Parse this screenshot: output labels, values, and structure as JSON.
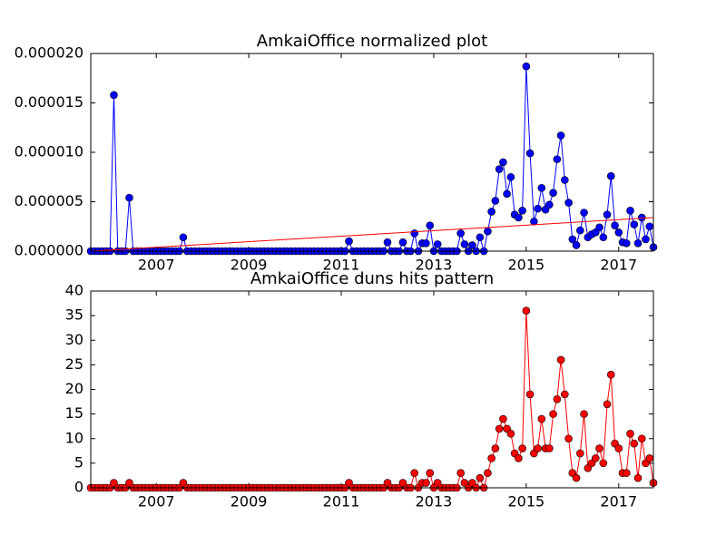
{
  "chart_data": [
    {
      "type": "line",
      "title": "AmkaiOffice normalized plot",
      "x": [
        2005.583,
        2005.667,
        2005.75,
        2005.833,
        2005.917,
        2006,
        2006.083,
        2006.167,
        2006.25,
        2006.333,
        2006.417,
        2006.5,
        2006.583,
        2006.667,
        2006.75,
        2006.833,
        2006.917,
        2007,
        2007.083,
        2007.167,
        2007.25,
        2007.333,
        2007.417,
        2007.5,
        2007.583,
        2007.667,
        2007.75,
        2007.833,
        2007.917,
        2008,
        2008.083,
        2008.167,
        2008.25,
        2008.333,
        2008.417,
        2008.5,
        2008.583,
        2008.667,
        2008.75,
        2008.833,
        2008.917,
        2009,
        2009.083,
        2009.167,
        2009.25,
        2009.333,
        2009.417,
        2009.5,
        2009.583,
        2009.667,
        2009.75,
        2009.833,
        2009.917,
        2010,
        2010.083,
        2010.167,
        2010.25,
        2010.333,
        2010.417,
        2010.5,
        2010.583,
        2010.667,
        2010.75,
        2010.833,
        2010.917,
        2011,
        2011.083,
        2011.167,
        2011.25,
        2011.333,
        2011.417,
        2011.5,
        2011.583,
        2011.667,
        2011.75,
        2011.833,
        2011.917,
        2012,
        2012.083,
        2012.167,
        2012.25,
        2012.333,
        2012.417,
        2012.5,
        2012.583,
        2012.667,
        2012.75,
        2012.833,
        2012.917,
        2013,
        2013.083,
        2013.167,
        2013.25,
        2013.333,
        2013.417,
        2013.5,
        2013.583,
        2013.667,
        2013.75,
        2013.833,
        2013.917,
        2014,
        2014.083,
        2014.167,
        2014.25,
        2014.333,
        2014.417,
        2014.5,
        2014.583,
        2014.667,
        2014.75,
        2014.833,
        2014.917,
        2015,
        2015.083,
        2015.167,
        2015.25,
        2015.333,
        2015.417,
        2015.5,
        2015.583,
        2015.667,
        2015.75,
        2015.833,
        2015.917,
        2016,
        2016.083,
        2016.167,
        2016.25,
        2016.333,
        2016.417,
        2016.5,
        2016.583,
        2016.667,
        2016.75,
        2016.833,
        2016.917,
        2017,
        2017.083,
        2017.167,
        2017.25,
        2017.333,
        2017.417,
        2017.5,
        2017.583,
        2017.667,
        2017.75
      ],
      "xlim": [
        2005.583,
        2017.75
      ],
      "xticks": [
        2007,
        2009,
        2011,
        2013,
        2015,
        2017
      ],
      "ylim": [
        0,
        2e-05
      ],
      "yticks": [
        {
          "value": 0,
          "label": "0.000000"
        },
        {
          "value": 5e-06,
          "label": "0.000005"
        },
        {
          "value": 1e-05,
          "label": "0.000010"
        },
        {
          "value": 1.5e-05,
          "label": "0.000015"
        },
        {
          "value": 2e-05,
          "label": "0.000020"
        }
      ],
      "series": [
        {
          "color": "#0000ff",
          "marker": true,
          "values": [
            0,
            0,
            0,
            0,
            0,
            0,
            1.58e-05,
            0,
            0,
            0,
            5.4e-06,
            0,
            0,
            0,
            0,
            0,
            0,
            0,
            0,
            0,
            0,
            0,
            0,
            0,
            1.4e-06,
            0,
            0,
            0,
            0,
            0,
            0,
            0,
            0,
            0,
            0,
            0,
            0,
            0,
            0,
            0,
            0,
            0,
            0,
            0,
            0,
            0,
            0,
            0,
            0,
            0,
            0,
            0,
            0,
            0,
            0,
            0,
            0,
            0,
            0,
            0,
            0,
            0,
            0,
            0,
            0,
            0,
            0,
            1e-06,
            0,
            0,
            0,
            0,
            0,
            0,
            0,
            0,
            0,
            9e-07,
            0,
            0,
            0,
            9e-07,
            0,
            0,
            1.8e-06,
            0,
            8e-07,
            8e-07,
            2.6e-06,
            0,
            7e-07,
            0,
            0,
            0,
            0,
            0,
            1.8e-06,
            7e-07,
            0,
            6e-07,
            0,
            1.4e-06,
            0,
            2e-06,
            4e-06,
            5.1e-06,
            8.3e-06,
            9e-06,
            5.8e-06,
            7.5e-06,
            3.7e-06,
            3.4e-06,
            4.1e-06,
            1.87e-05,
            9.9e-06,
            3e-06,
            4.3e-06,
            6.4e-06,
            4.2e-06,
            4.7e-06,
            5.9e-06,
            9.3e-06,
            1.17e-05,
            7.2e-06,
            4.9e-06,
            1.2e-06,
            6e-07,
            2.1e-06,
            3.9e-06,
            1.4e-06,
            1.7e-06,
            1.9e-06,
            2.4e-06,
            1.4e-06,
            3.7e-06,
            7.6e-06,
            2.6e-06,
            1.9e-06,
            9e-07,
            8e-07,
            4.1e-06,
            2.7e-06,
            8e-07,
            3.4e-06,
            1.2e-06,
            2.5e-06,
            4e-07
          ]
        },
        {
          "color": "#ff0000",
          "marker": false,
          "x": [
            2005.583,
            2017.75
          ],
          "values": [
            0,
            3.4e-06
          ]
        }
      ]
    },
    {
      "type": "line",
      "title": "AmkaiOffice duns hits pattern",
      "x": [
        2005.583,
        2005.667,
        2005.75,
        2005.833,
        2005.917,
        2006,
        2006.083,
        2006.167,
        2006.25,
        2006.333,
        2006.417,
        2006.5,
        2006.583,
        2006.667,
        2006.75,
        2006.833,
        2006.917,
        2007,
        2007.083,
        2007.167,
        2007.25,
        2007.333,
        2007.417,
        2007.5,
        2007.583,
        2007.667,
        2007.75,
        2007.833,
        2007.917,
        2008,
        2008.083,
        2008.167,
        2008.25,
        2008.333,
        2008.417,
        2008.5,
        2008.583,
        2008.667,
        2008.75,
        2008.833,
        2008.917,
        2009,
        2009.083,
        2009.167,
        2009.25,
        2009.333,
        2009.417,
        2009.5,
        2009.583,
        2009.667,
        2009.75,
        2009.833,
        2009.917,
        2010,
        2010.083,
        2010.167,
        2010.25,
        2010.333,
        2010.417,
        2010.5,
        2010.583,
        2010.667,
        2010.75,
        2010.833,
        2010.917,
        2011,
        2011.083,
        2011.167,
        2011.25,
        2011.333,
        2011.417,
        2011.5,
        2011.583,
        2011.667,
        2011.75,
        2011.833,
        2011.917,
        2012,
        2012.083,
        2012.167,
        2012.25,
        2012.333,
        2012.417,
        2012.5,
        2012.583,
        2012.667,
        2012.75,
        2012.833,
        2012.917,
        2013,
        2013.083,
        2013.167,
        2013.25,
        2013.333,
        2013.417,
        2013.5,
        2013.583,
        2013.667,
        2013.75,
        2013.833,
        2013.917,
        2014,
        2014.083,
        2014.167,
        2014.25,
        2014.333,
        2014.417,
        2014.5,
        2014.583,
        2014.667,
        2014.75,
        2014.833,
        2014.917,
        2015,
        2015.083,
        2015.167,
        2015.25,
        2015.333,
        2015.417,
        2015.5,
        2015.583,
        2015.667,
        2015.75,
        2015.833,
        2015.917,
        2016,
        2016.083,
        2016.167,
        2016.25,
        2016.333,
        2016.417,
        2016.5,
        2016.583,
        2016.667,
        2016.75,
        2016.833,
        2016.917,
        2017,
        2017.083,
        2017.167,
        2017.25,
        2017.333,
        2017.417,
        2017.5,
        2017.583,
        2017.667,
        2017.75
      ],
      "xlim": [
        2005.583,
        2017.75
      ],
      "xticks": [
        2007,
        2009,
        2011,
        2013,
        2015,
        2017
      ],
      "ylim": [
        0,
        40
      ],
      "yticks": [
        0,
        5,
        10,
        15,
        20,
        25,
        30,
        35,
        40
      ],
      "series": [
        {
          "color": "#ff0000",
          "marker": true,
          "values": [
            0,
            0,
            0,
            0,
            0,
            0,
            1,
            0,
            0,
            0,
            1,
            0,
            0,
            0,
            0,
            0,
            0,
            0,
            0,
            0,
            0,
            0,
            0,
            0,
            1,
            0,
            0,
            0,
            0,
            0,
            0,
            0,
            0,
            0,
            0,
            0,
            0,
            0,
            0,
            0,
            0,
            0,
            0,
            0,
            0,
            0,
            0,
            0,
            0,
            0,
            0,
            0,
            0,
            0,
            0,
            0,
            0,
            0,
            0,
            0,
            0,
            0,
            0,
            0,
            0,
            0,
            0,
            1,
            0,
            0,
            0,
            0,
            0,
            0,
            0,
            0,
            0,
            1,
            0,
            0,
            0,
            1,
            0,
            0,
            3,
            0,
            1,
            1,
            3,
            0,
            1,
            0,
            0,
            0,
            0,
            0,
            3,
            1,
            0,
            1,
            0,
            2,
            0,
            3,
            6,
            8,
            12,
            14,
            12,
            11,
            7,
            6,
            8,
            36,
            19,
            7,
            8,
            14,
            8,
            8,
            15,
            18,
            26,
            19,
            10,
            3,
            2,
            7,
            15,
            4,
            5,
            6,
            8,
            5,
            17,
            23,
            9,
            8,
            3,
            3,
            11,
            9,
            2,
            10,
            5,
            6,
            1
          ]
        }
      ]
    }
  ]
}
